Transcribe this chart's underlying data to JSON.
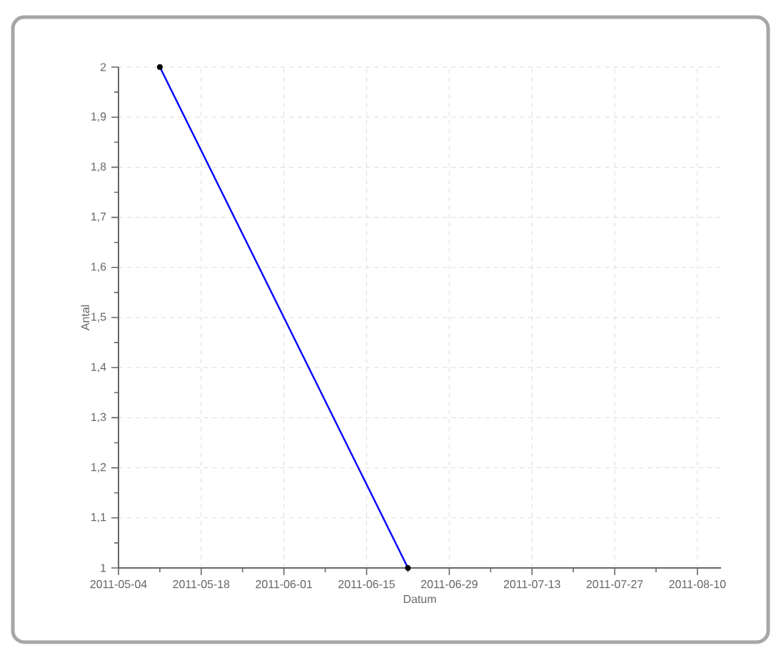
{
  "chart_data": {
    "type": "line",
    "xlabel": "Datum",
    "ylabel": "Antal",
    "x": [
      "2011-05-11",
      "2011-06-22"
    ],
    "series": [
      {
        "color": "#0000ff",
        "values": [
          2,
          1
        ]
      }
    ],
    "xlim": [
      "2011-05-04",
      "2011-08-14"
    ],
    "xticks": [
      "2011-05-04",
      "2011-05-18",
      "2011-06-01",
      "2011-06-15",
      "2011-06-29",
      "2011-07-13",
      "2011-07-27",
      "2011-08-10"
    ],
    "ylim": [
      1,
      2
    ],
    "yticks": [
      {
        "value": 1,
        "label": "1"
      },
      {
        "value": 1.1,
        "label": "1,1"
      },
      {
        "value": 1.2,
        "label": "1,2"
      },
      {
        "value": 1.3,
        "label": "1,3"
      },
      {
        "value": 1.4,
        "label": "1,4"
      },
      {
        "value": 1.5,
        "label": "1,5"
      },
      {
        "value": 1.6,
        "label": "1,6"
      },
      {
        "value": 1.7,
        "label": "1,7"
      },
      {
        "value": 1.8,
        "label": "1,8"
      },
      {
        "value": 1.9,
        "label": "1,9"
      },
      {
        "value": 2,
        "label": "2"
      }
    ],
    "grid": true,
    "marker": "circle",
    "line_style": "solid"
  }
}
